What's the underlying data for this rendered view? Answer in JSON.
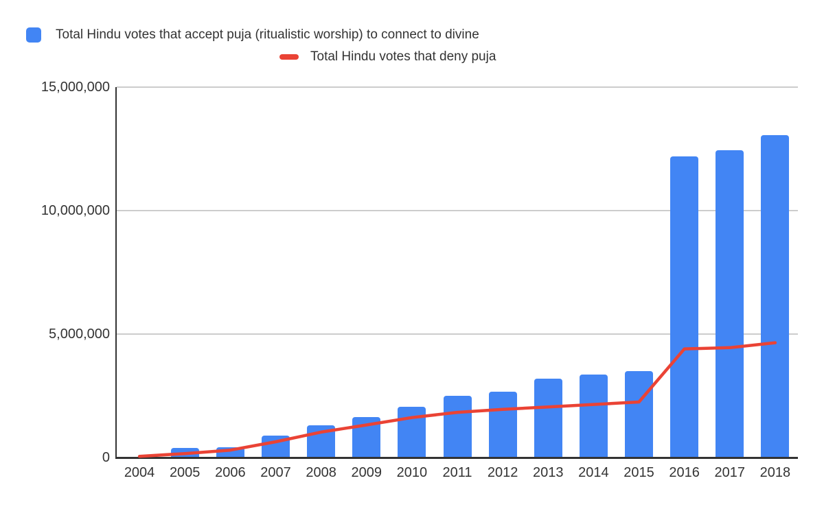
{
  "chart_data": {
    "type": "combo_bar_line",
    "title": "",
    "xlabel": "",
    "ylabel": "",
    "categories": [
      "2004",
      "2005",
      "2006",
      "2007",
      "2008",
      "2009",
      "2010",
      "2011",
      "2012",
      "2013",
      "2014",
      "2015",
      "2016",
      "2017",
      "2018"
    ],
    "series": [
      {
        "name": "Total Hindu votes that accept puja (ritualistic worship) to connect to divine",
        "type": "bar",
        "color": "#4285F4",
        "values": [
          20000,
          390000,
          430000,
          880000,
          1310000,
          1630000,
          2050000,
          2500000,
          2670000,
          3200000,
          3350000,
          3500000,
          12200000,
          12450000,
          13050000
        ]
      },
      {
        "name": "Total Hindu votes that deny puja",
        "type": "line",
        "color": "#EA4335",
        "values": [
          50000,
          160000,
          300000,
          640000,
          1030000,
          1320000,
          1620000,
          1830000,
          1950000,
          2050000,
          2150000,
          2250000,
          4400000,
          4450000,
          4650000
        ]
      }
    ],
    "ylim": [
      0,
      15000000
    ],
    "yticks": [
      {
        "value": 0,
        "label": "0"
      },
      {
        "value": 5000000,
        "label": "5,000,000"
      },
      {
        "value": 10000000,
        "label": "10,000,000"
      },
      {
        "value": 15000000,
        "label": "15,000,000"
      }
    ],
    "grid": true,
    "legend_position": "top",
    "colors": {
      "background": "#ffffff",
      "axis_line": "#333333",
      "gridline": "#cccccc",
      "tick_label": "#333333",
      "legend_text": "#333333"
    }
  }
}
